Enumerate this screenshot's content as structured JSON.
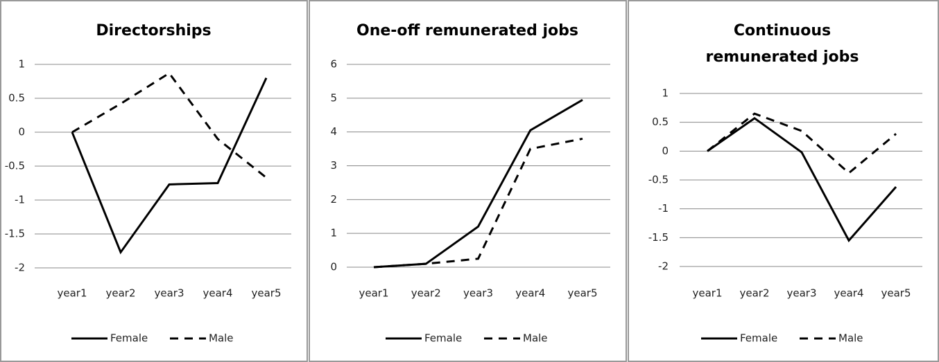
{
  "chart_data": [
    {
      "type": "line",
      "title": "Directorships",
      "categories": [
        "year1",
        "year2",
        "year3",
        "year4",
        "year5"
      ],
      "series": [
        {
          "name": "Female",
          "color": "#000000",
          "dashed": false,
          "values": [
            0,
            -1.77,
            -0.77,
            -0.75,
            0.8
          ]
        },
        {
          "name": "Male",
          "color": "#000000",
          "dashed": true,
          "values": [
            0,
            0.42,
            0.87,
            -0.1,
            -0.67
          ]
        }
      ],
      "ylim": [
        -2,
        1
      ],
      "yticks": [
        -2,
        -1.5,
        -1,
        -0.5,
        0,
        0.5,
        1
      ],
      "grid": true,
      "legend": "bottom"
    },
    {
      "type": "line",
      "title": "One-off remunerated jobs",
      "categories": [
        "year1",
        "year2",
        "year3",
        "year4",
        "year5"
      ],
      "series": [
        {
          "name": "Female",
          "color": "#000000",
          "dashed": false,
          "values": [
            0,
            0.1,
            1.2,
            4.05,
            4.95
          ]
        },
        {
          "name": "Male",
          "color": "#000000",
          "dashed": true,
          "values": [
            0,
            0.1,
            0.25,
            3.5,
            3.8
          ]
        }
      ],
      "ylim": [
        0,
        6
      ],
      "yticks": [
        0,
        1,
        2,
        3,
        4,
        5,
        6
      ],
      "grid": true,
      "legend": "bottom"
    },
    {
      "type": "line",
      "title": "Continuous remunerated jobs",
      "categories": [
        "year1",
        "year2",
        "year3",
        "year4",
        "year5"
      ],
      "series": [
        {
          "name": "Female",
          "color": "#000000",
          "dashed": false,
          "values": [
            0,
            0.57,
            -0.02,
            -1.55,
            -0.62
          ]
        },
        {
          "name": "Male",
          "color": "#000000",
          "dashed": true,
          "values": [
            0,
            0.65,
            0.35,
            -0.38,
            0.3
          ]
        }
      ],
      "ylim": [
        -2,
        1
      ],
      "yticks": [
        -2,
        -1.5,
        -1,
        -0.5,
        0,
        0.5,
        1
      ],
      "grid": true,
      "legend": "bottom"
    }
  ]
}
